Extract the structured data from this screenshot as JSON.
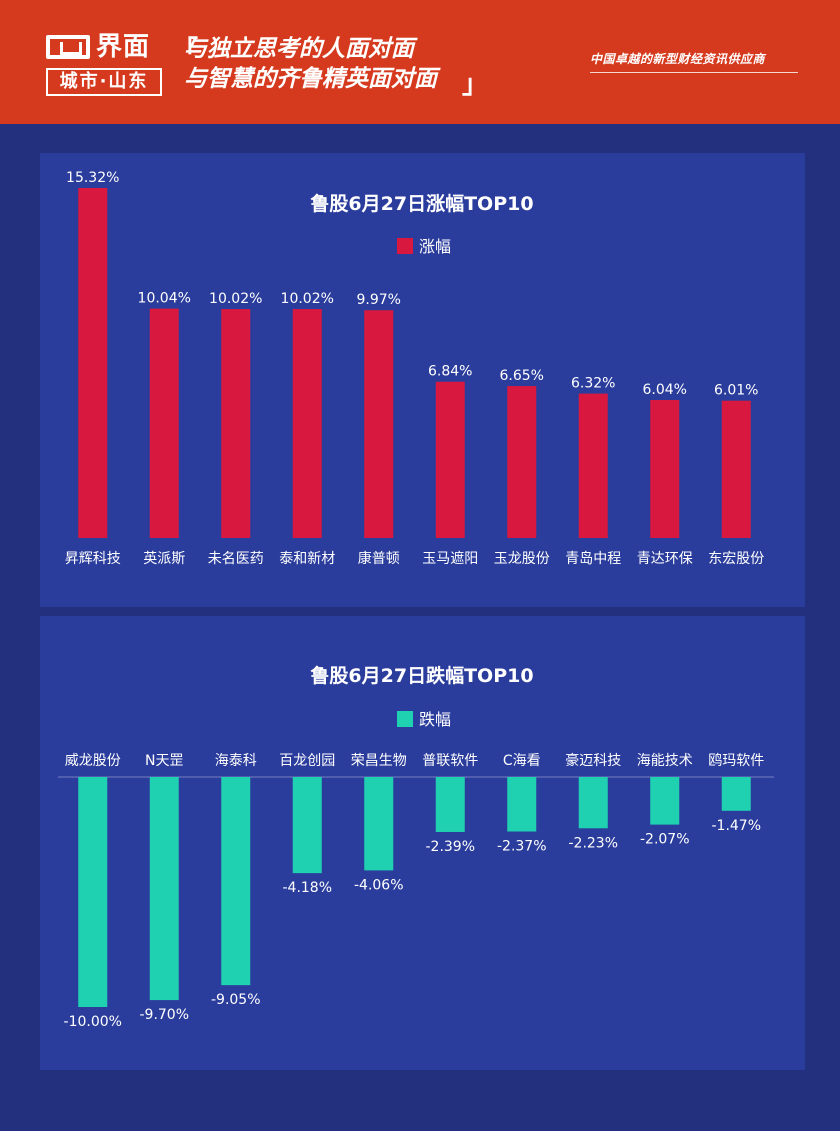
{
  "header": {
    "logo_name": "界面",
    "logo_sub": "城市·山东",
    "slogan_open": "「",
    "slogan_line1": "与独立思考的人面对面",
    "slogan_line2": "与智慧的齐鲁精英面对面",
    "slogan_close": "」",
    "tagline": "中国卓越的新型财经资讯供应商"
  },
  "colors": {
    "header_bg": "#d63a1e",
    "page_bg": "#22307e",
    "panel_bg": "#2b3d9c",
    "gain": "#d8183e",
    "loss": "#1fd1b1"
  },
  "chart_data": [
    {
      "type": "bar",
      "title": "鲁股6月27日涨幅TOP10",
      "legend": "涨幅",
      "legend_position": "top-center",
      "categories": [
        "昇辉科技",
        "英派斯",
        "未名医药",
        "泰和新材",
        "康普顿",
        "玉马遮阳",
        "玉龙股份",
        "青岛中程",
        "青达环保",
        "东宏股份"
      ],
      "series": [
        {
          "name": "涨幅",
          "values": [
            15.32,
            10.04,
            10.02,
            10.02,
            9.97,
            6.84,
            6.65,
            6.32,
            6.04,
            6.01
          ]
        }
      ],
      "value_labels": [
        "15.32%",
        "10.04%",
        "10.02%",
        "10.02%",
        "9.97%",
        "6.84%",
        "6.65%",
        "6.32%",
        "6.04%",
        "6.01%"
      ],
      "ylim": [
        0,
        15.32
      ],
      "grid": false
    },
    {
      "type": "bar",
      "title": "鲁股6月27日跌幅TOP10",
      "legend": "跌幅",
      "legend_position": "top-center",
      "categories": [
        "威龙股份",
        "N天罡",
        "海泰科",
        "百龙创园",
        "荣昌生物",
        "普联软件",
        "C海看",
        "豪迈科技",
        "海能技术",
        "鸥玛软件"
      ],
      "series": [
        {
          "name": "跌幅",
          "values": [
            -10.0,
            -9.7,
            -9.05,
            -4.18,
            -4.06,
            -2.39,
            -2.37,
            -2.23,
            -2.07,
            -1.47
          ]
        }
      ],
      "value_labels": [
        "-10.00%",
        "-9.70%",
        "-9.05%",
        "-4.18%",
        "-4.06%",
        "-2.39%",
        "-2.37%",
        "-2.23%",
        "-2.07%",
        "-1.47%"
      ],
      "ylim": [
        -10.0,
        0
      ],
      "grid": false
    }
  ]
}
